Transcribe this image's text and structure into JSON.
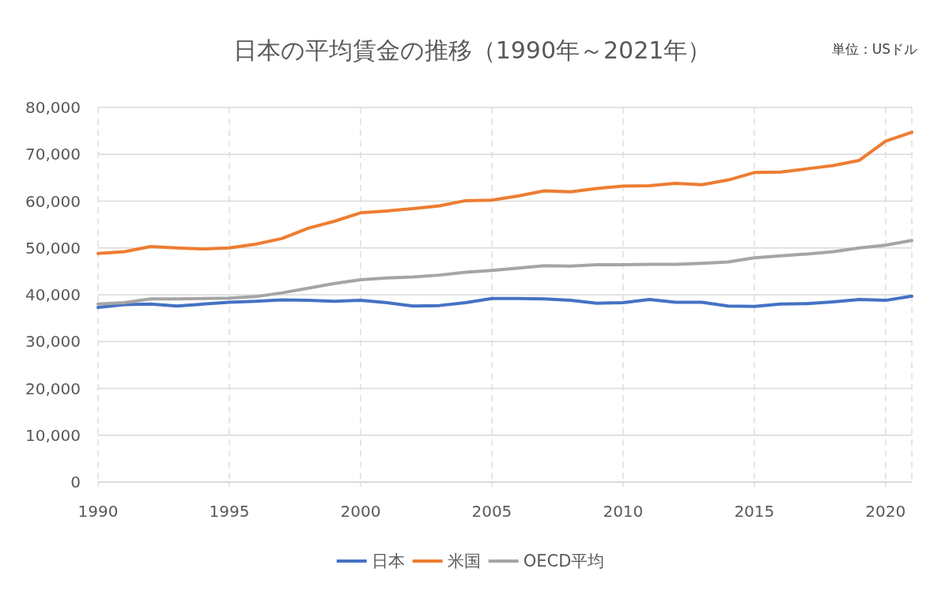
{
  "chart_data": {
    "type": "line",
    "title": "日本の平均賃金の推移（1990年～2021年）",
    "annotations": [
      "単位：USドル"
    ],
    "x": [
      1990,
      1991,
      1992,
      1993,
      1994,
      1995,
      1996,
      1997,
      1998,
      1999,
      2000,
      2001,
      2002,
      2003,
      2004,
      2005,
      2006,
      2007,
      2008,
      2009,
      2010,
      2011,
      2012,
      2013,
      2014,
      2015,
      2016,
      2017,
      2018,
      2019,
      2020,
      2021
    ],
    "series": [
      {
        "name": "日本",
        "color": "#4472c4",
        "values": [
          37300,
          37900,
          38000,
          37600,
          38000,
          38400,
          38600,
          38900,
          38800,
          38600,
          38800,
          38300,
          37600,
          37700,
          38300,
          39200,
          39200,
          39100,
          38800,
          38200,
          38300,
          39000,
          38400,
          38400,
          37600,
          37500,
          38000,
          38100,
          38500,
          39000,
          38800,
          39700
        ]
      },
      {
        "name": "米国",
        "color": "#ed7d31",
        "values": [
          48800,
          49200,
          50300,
          50000,
          49800,
          50000,
          50800,
          52000,
          54200,
          55700,
          57500,
          57900,
          58400,
          59000,
          60100,
          60200,
          61100,
          62200,
          62000,
          62700,
          63200,
          63300,
          63800,
          63500,
          64500,
          66100,
          66200,
          66900,
          67600,
          68700,
          72800,
          74700
        ]
      },
      {
        "name": "OECD平均",
        "color": "#a5a5a5",
        "values": [
          38000,
          38300,
          39100,
          39100,
          39200,
          39300,
          39600,
          40400,
          41400,
          42400,
          43200,
          43600,
          43800,
          44200,
          44800,
          45200,
          45700,
          46200,
          46100,
          46400,
          46400,
          46500,
          46500,
          46700,
          47000,
          47900,
          48300,
          48700,
          49200,
          50000,
          50600,
          51600
        ]
      }
    ],
    "xlim": [
      1990,
      2021
    ],
    "xticks": [
      1990,
      1995,
      2000,
      2005,
      2010,
      2015,
      2020
    ],
    "ylim": [
      0,
      80000
    ],
    "yticks": [
      0,
      {
        "value": 10000,
        "label": "10,000"
      },
      {
        "value": 20000,
        "label": "20,000"
      },
      {
        "value": 30000,
        "label": "30,000"
      },
      {
        "value": 40000,
        "label": "40,000"
      },
      {
        "value": 50000,
        "label": "50,000"
      },
      {
        "value": 60000,
        "label": "60,000"
      },
      {
        "value": 70000,
        "label": "70,000"
      },
      {
        "value": 80000,
        "label": "80,000"
      }
    ],
    "grid": true,
    "legend": "bottom",
    "marker": "none",
    "line_style": "solid"
  }
}
